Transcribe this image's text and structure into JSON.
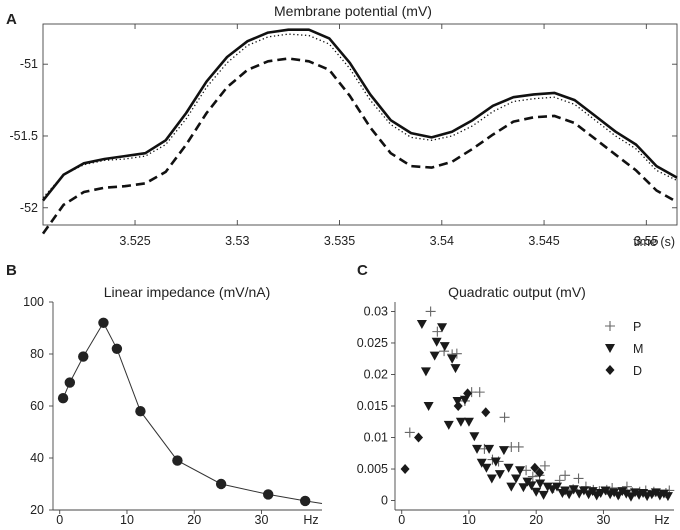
{
  "panels": {
    "a": "A",
    "b": "B",
    "c": "C"
  },
  "chart_data": [
    {
      "type": "line",
      "title": "Membrane potential (mV)",
      "xlabel": "time (s)",
      "ylabel": "",
      "xlim": [
        3.5205,
        3.5515
      ],
      "ylim": [
        -52.12,
        -50.72
      ],
      "xticks": [
        3.525,
        3.53,
        3.535,
        3.54,
        3.545,
        3.55
      ],
      "xtick_labels": [
        "3.525",
        "3.53",
        "3.535",
        "3.54",
        "3.545",
        "3.55"
      ],
      "yticks": [
        -51,
        -51.5,
        -52
      ],
      "ytick_labels": [
        "-51",
        "-51.5",
        "-52"
      ],
      "series": [
        {
          "name": "solid",
          "style": "solid",
          "x": [
            3.5205,
            3.5215,
            3.5225,
            3.5235,
            3.5245,
            3.5255,
            3.5265,
            3.5275,
            3.5285,
            3.5295,
            3.5305,
            3.5315,
            3.5325,
            3.5335,
            3.5345,
            3.5355,
            3.5365,
            3.5375,
            3.5385,
            3.5395,
            3.5405,
            3.5415,
            3.5425,
            3.5435,
            3.5445,
            3.5455,
            3.5465,
            3.5475,
            3.5485,
            3.5495,
            3.5505,
            3.5515
          ],
          "y": [
            -51.95,
            -51.77,
            -51.69,
            -51.66,
            -51.64,
            -51.62,
            -51.53,
            -51.34,
            -51.12,
            -50.95,
            -50.84,
            -50.78,
            -50.76,
            -50.76,
            -50.82,
            -50.99,
            -51.21,
            -51.39,
            -51.48,
            -51.51,
            -51.47,
            -51.39,
            -51.29,
            -51.23,
            -51.21,
            -51.2,
            -51.25,
            -51.36,
            -51.47,
            -51.56,
            -51.71,
            -51.79
          ]
        },
        {
          "name": "dotted",
          "style": "dotted",
          "x": [
            3.5205,
            3.5215,
            3.5225,
            3.5235,
            3.5245,
            3.5255,
            3.5265,
            3.5275,
            3.5285,
            3.5295,
            3.5305,
            3.5315,
            3.5325,
            3.5335,
            3.5345,
            3.5355,
            3.5365,
            3.5375,
            3.5385,
            3.5395,
            3.5405,
            3.5415,
            3.5425,
            3.5435,
            3.5445,
            3.5455,
            3.5465,
            3.5475,
            3.5485,
            3.5495,
            3.5505,
            3.5515
          ],
          "y": [
            -51.93,
            -51.77,
            -51.7,
            -51.67,
            -51.66,
            -51.64,
            -51.56,
            -51.38,
            -51.16,
            -50.99,
            -50.87,
            -50.81,
            -50.79,
            -50.8,
            -50.86,
            -51.03,
            -51.25,
            -51.42,
            -51.51,
            -51.53,
            -51.5,
            -51.43,
            -51.33,
            -51.26,
            -51.24,
            -51.23,
            -51.28,
            -51.39,
            -51.5,
            -51.59,
            -51.74,
            -51.81
          ]
        },
        {
          "name": "dashed",
          "style": "dashed",
          "x": [
            3.5205,
            3.5215,
            3.5225,
            3.5235,
            3.5245,
            3.5255,
            3.5265,
            3.5275,
            3.5285,
            3.5295,
            3.5305,
            3.5315,
            3.5325,
            3.5335,
            3.5345,
            3.5355,
            3.5365,
            3.5375,
            3.5385,
            3.5395,
            3.5405,
            3.5415,
            3.5425,
            3.5435,
            3.5445,
            3.5455,
            3.5465,
            3.5475,
            3.5485,
            3.5495,
            3.5505,
            3.5515
          ],
          "y": [
            -52.18,
            -51.98,
            -51.89,
            -51.86,
            -51.85,
            -51.83,
            -51.75,
            -51.56,
            -51.34,
            -51.16,
            -51.04,
            -50.98,
            -50.96,
            -50.98,
            -51.04,
            -51.22,
            -51.44,
            -51.62,
            -51.71,
            -51.72,
            -51.68,
            -51.59,
            -51.49,
            -51.4,
            -51.37,
            -51.36,
            -51.41,
            -51.52,
            -51.63,
            -51.74,
            -51.88,
            -51.96
          ]
        }
      ]
    },
    {
      "type": "line",
      "title": "Linear impedance (mV/nA)",
      "xlabel": "Hz",
      "ylabel": "",
      "xlim": [
        -1,
        39
      ],
      "ylim": [
        20,
        100
      ],
      "xticks": [
        0,
        10,
        20,
        30
      ],
      "xtick_labels": [
        "0",
        "10",
        "20",
        "30"
      ],
      "yticks": [
        20,
        40,
        60,
        80,
        100
      ],
      "ytick_labels": [
        "20",
        "40",
        "60",
        "80",
        "100"
      ],
      "curve": {
        "x": [
          0.5,
          1.5,
          3.5,
          6.5,
          8.5,
          12,
          17.5,
          24,
          31,
          36.5,
          39
        ],
        "y": [
          63,
          69,
          79,
          92,
          82,
          58,
          39,
          30,
          26,
          23.5,
          22.5
        ]
      },
      "markers": {
        "x": [
          0.5,
          1.5,
          3.5,
          6.5,
          8.5,
          12,
          17.5,
          24,
          31,
          36.5
        ],
        "y": [
          63,
          69,
          79,
          92,
          82,
          58,
          39,
          30,
          26,
          23.5
        ]
      }
    },
    {
      "type": "scatter",
      "title": "Quadratic output (mV)",
      "xlabel": "Hz",
      "ylabel": "",
      "xlim": [
        -1,
        40.5
      ],
      "ylim": [
        -0.0015,
        0.0315
      ],
      "xticks": [
        0,
        10,
        20,
        30
      ],
      "xtick_labels": [
        "0",
        "10",
        "20",
        "30"
      ],
      "yticks": [
        0,
        0.005,
        0.01,
        0.015,
        0.02,
        0.025,
        0.03
      ],
      "ytick_labels": [
        "0",
        "0.005",
        "0.01",
        "0.015",
        "0.02",
        "0.025",
        "0.03"
      ],
      "legend": {
        "position": "top-right",
        "entries": [
          "P",
          "M",
          "D"
        ]
      },
      "series": [
        {
          "name": "P",
          "marker": "plus",
          "x": [
            1.2,
            4.3,
            5.3,
            6.3,
            7.5,
            8.2,
            9.4,
            10.4,
            11.6,
            12.3,
            13.5,
            14.4,
            15.3,
            16.3,
            17.4,
            18.5,
            19.5,
            20.5,
            21.3,
            22.6,
            23.5,
            24.3,
            25.5,
            26.3,
            27.4,
            28.5,
            29.4,
            30.5,
            31.3,
            32.4,
            33.5,
            34.3,
            35.4,
            36.3,
            37.5,
            38.4,
            39.3,
            39.8
          ],
          "y": [
            0.0108,
            0.03,
            0.0268,
            0.0237,
            0.0232,
            0.0233,
            0.0158,
            0.0172,
            0.0172,
            0.0082,
            0.0065,
            0.0062,
            0.0132,
            0.0085,
            0.0085,
            0.0048,
            0.0038,
            0.004,
            0.0055,
            0.002,
            0.0032,
            0.004,
            0.0018,
            0.0035,
            0.0022,
            0.0017,
            0.0015,
            0.0017,
            0.002,
            0.0011,
            0.0022,
            0.0013,
            0.0014,
            0.0016,
            0.0014,
            0.0011,
            0.0012,
            0.0016
          ]
        },
        {
          "name": "M",
          "marker": "triangle-down",
          "x": [
            3.0,
            3.6,
            4.0,
            4.9,
            5.2,
            6.0,
            6.4,
            7.0,
            7.5,
            8.0,
            8.3,
            8.8,
            9.4,
            10.0,
            10.8,
            11.2,
            11.9,
            12.6,
            13.0,
            13.4,
            14.0,
            14.6,
            15.2,
            15.9,
            16.3,
            17.0,
            17.6,
            18.1,
            18.7,
            19.3,
            20.0,
            20.6,
            21.1,
            21.7,
            22.4,
            23.1,
            23.9,
            24.3,
            24.9,
            25.6,
            26.4,
            27.1,
            27.8,
            28.4,
            29.0,
            29.6,
            30.3,
            31.0,
            31.6,
            32.2,
            32.8,
            33.4,
            34.1,
            34.7,
            35.3,
            35.9,
            36.5,
            37.2,
            37.8,
            38.4,
            39.0,
            39.6
          ],
          "y": [
            0.028,
            0.0205,
            0.015,
            0.023,
            0.0252,
            0.0275,
            0.0245,
            0.012,
            0.0225,
            0.021,
            0.0158,
            0.0125,
            0.016,
            0.0125,
            0.0102,
            0.0082,
            0.006,
            0.0052,
            0.0082,
            0.0035,
            0.0062,
            0.0042,
            0.008,
            0.0052,
            0.0022,
            0.0035,
            0.0048,
            0.0021,
            0.003,
            0.0024,
            0.0014,
            0.0027,
            0.0009,
            0.0022,
            0.0018,
            0.0022,
            0.0012,
            0.0016,
            0.001,
            0.0018,
            0.0011,
            0.0016,
            0.001,
            0.0015,
            0.0008,
            0.0012,
            0.0016,
            0.001,
            0.0013,
            0.0008,
            0.0015,
            0.0011,
            0.0006,
            0.0013,
            0.0009,
            0.0012,
            0.0007,
            0.001,
            0.0013,
            0.0008,
            0.0011,
            0.0007
          ]
        },
        {
          "name": "D",
          "marker": "diamond",
          "x": [
            0.5,
            2.5,
            8.4,
            9.8,
            12.5,
            19.8,
            20.5
          ],
          "y": [
            0.005,
            0.01,
            0.015,
            0.017,
            0.014,
            0.0052,
            0.0044
          ]
        }
      ]
    }
  ]
}
